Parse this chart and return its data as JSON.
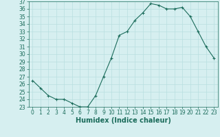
{
  "x": [
    0,
    1,
    2,
    3,
    4,
    5,
    6,
    7,
    8,
    9,
    10,
    11,
    12,
    13,
    14,
    15,
    16,
    17,
    18,
    19,
    20,
    21,
    22,
    23
  ],
  "y": [
    26.5,
    25.5,
    24.5,
    24.0,
    24.0,
    23.5,
    23.0,
    23.0,
    24.5,
    27.0,
    29.5,
    32.5,
    33.0,
    34.5,
    35.5,
    36.7,
    36.5,
    36.0,
    36.0,
    36.2,
    35.0,
    33.0,
    31.0,
    29.5
  ],
  "line_color": "#1a6b5a",
  "marker": "+",
  "bg_color": "#d6eff0",
  "grid_color": "#b8dfe0",
  "tick_color": "#1a6b5a",
  "label_color": "#1a6b5a",
  "xlabel": "Humidex (Indice chaleur)",
  "ylim": [
    23,
    37
  ],
  "xlim": [
    -0.5,
    23.5
  ],
  "yticks": [
    23,
    24,
    25,
    26,
    27,
    28,
    29,
    30,
    31,
    32,
    33,
    34,
    35,
    36,
    37
  ],
  "xticks": [
    0,
    1,
    2,
    3,
    4,
    5,
    6,
    7,
    8,
    9,
    10,
    11,
    12,
    13,
    14,
    15,
    16,
    17,
    18,
    19,
    20,
    21,
    22,
    23
  ],
  "font_size": 5.5,
  "xlabel_fontsize": 7
}
